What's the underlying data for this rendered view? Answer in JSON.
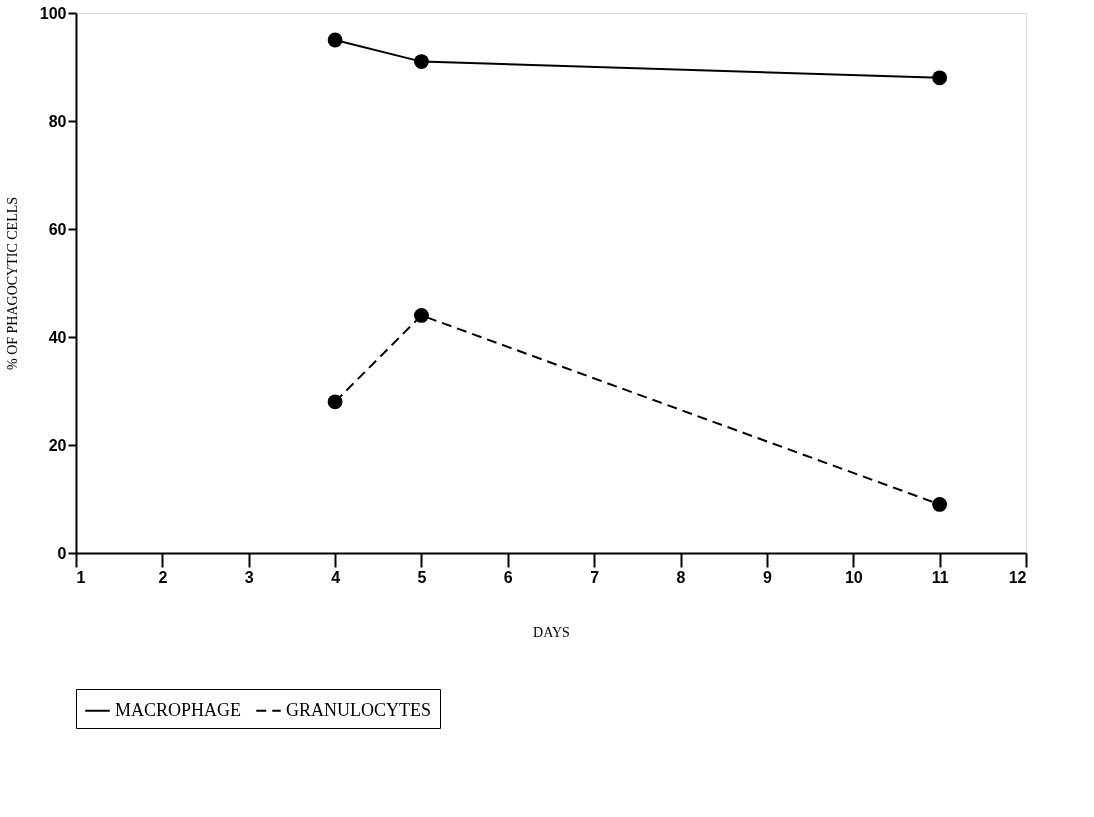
{
  "chart_data": {
    "type": "line",
    "xlabel": "DAYS",
    "ylabel": "% OF PHAGOCYTIC CELLS",
    "x": [
      4,
      5,
      11
    ],
    "series": [
      {
        "name": "MACROPHAGE",
        "color": "#000000",
        "values": [
          95,
          91,
          88
        ],
        "line_style": "solid"
      },
      {
        "name": "GRANULOCYTES",
        "color": "#000000",
        "values": [
          28,
          44,
          9
        ],
        "line_style": "dashed"
      }
    ],
    "xlim": [
      1,
      12
    ],
    "xticks": [
      1,
      2,
      3,
      4,
      5,
      6,
      7,
      8,
      9,
      10,
      11,
      12
    ],
    "ylim": [
      0,
      100
    ],
    "yticks": [
      0,
      20,
      40,
      60,
      80,
      100
    ],
    "marker": "circle",
    "grid": false,
    "legend": "bottom"
  }
}
